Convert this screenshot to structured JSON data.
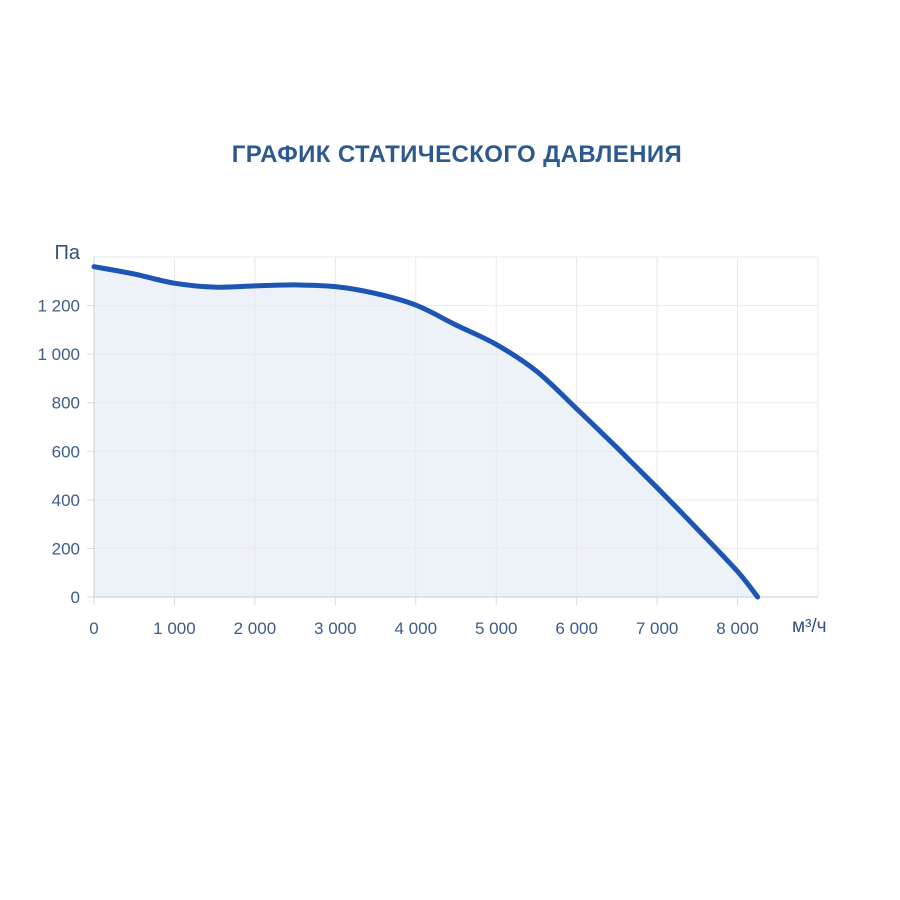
{
  "chart_data": {
    "type": "area",
    "title": "ГРАФИК СТАТИЧЕСКОГО ДАВЛЕНИЯ",
    "ylabel": "Па",
    "xlabel": "м³/ч",
    "xlim": [
      0,
      9000
    ],
    "ylim": [
      0,
      1400
    ],
    "grid": true,
    "legend": "none",
    "x_tick_values": [
      0,
      1000,
      2000,
      3000,
      4000,
      5000,
      6000,
      7000,
      8000
    ],
    "x_tick_labels": [
      "0",
      "1 000",
      "2 000",
      "3 000",
      "4 000",
      "5 000",
      "6 000",
      "7 000",
      "8 000"
    ],
    "y_tick_values": [
      0,
      200,
      400,
      600,
      800,
      1000,
      1200
    ],
    "y_tick_labels": [
      "0",
      "200",
      "400",
      "600",
      "800",
      "1 000",
      "1 200"
    ],
    "series": [
      {
        "name": "static-pressure-curve",
        "points": [
          [
            0,
            1360
          ],
          [
            500,
            1330
          ],
          [
            1000,
            1292
          ],
          [
            1500,
            1276
          ],
          [
            2000,
            1281
          ],
          [
            2500,
            1285
          ],
          [
            3000,
            1278
          ],
          [
            3500,
            1250
          ],
          [
            4000,
            1202
          ],
          [
            4500,
            1120
          ],
          [
            5000,
            1040
          ],
          [
            5500,
            930
          ],
          [
            6000,
            775
          ],
          [
            6500,
            615
          ],
          [
            7000,
            450
          ],
          [
            7500,
            280
          ],
          [
            8000,
            105
          ],
          [
            8250,
            0
          ]
        ]
      }
    ],
    "colors": {
      "line": "#1c55b4",
      "fill": "#edf1f8",
      "grid": "#e7e9ee",
      "axis": "#c9ced6",
      "tick": "#d7dbe1",
      "tick_text": "#3e5c89",
      "title": "#2d5a8e"
    }
  }
}
